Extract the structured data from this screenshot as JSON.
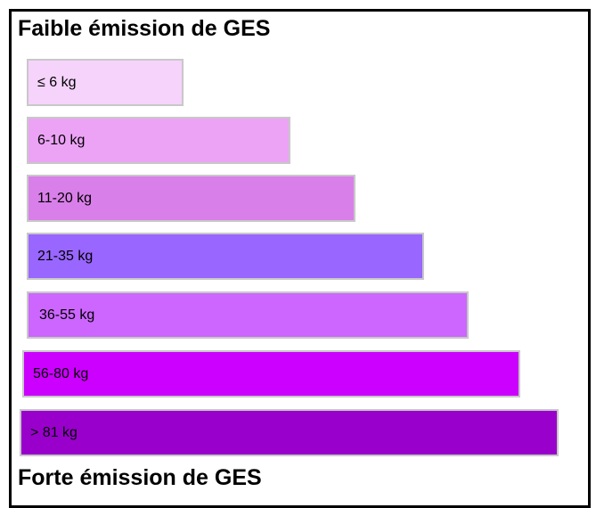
{
  "header": {
    "title": "Faible émission de GES"
  },
  "bars": [
    {
      "label": "≤ 6 kg",
      "color": "#f5d3fb"
    },
    {
      "label": "6-10 kg",
      "color": "#eca3f6"
    },
    {
      "label": "11-20 kg",
      "color": "#d97fea"
    },
    {
      "label": "21-35 kg",
      "color": "#9966ff"
    },
    {
      "label": "36-55 kg",
      "color": "#cc66ff"
    },
    {
      "label": "56-80 kg",
      "color": "#cc00ff"
    },
    {
      "label": "> 81 kg",
      "color": "#9900cc"
    }
  ],
  "footer": {
    "title": "Forte émission de GES"
  }
}
